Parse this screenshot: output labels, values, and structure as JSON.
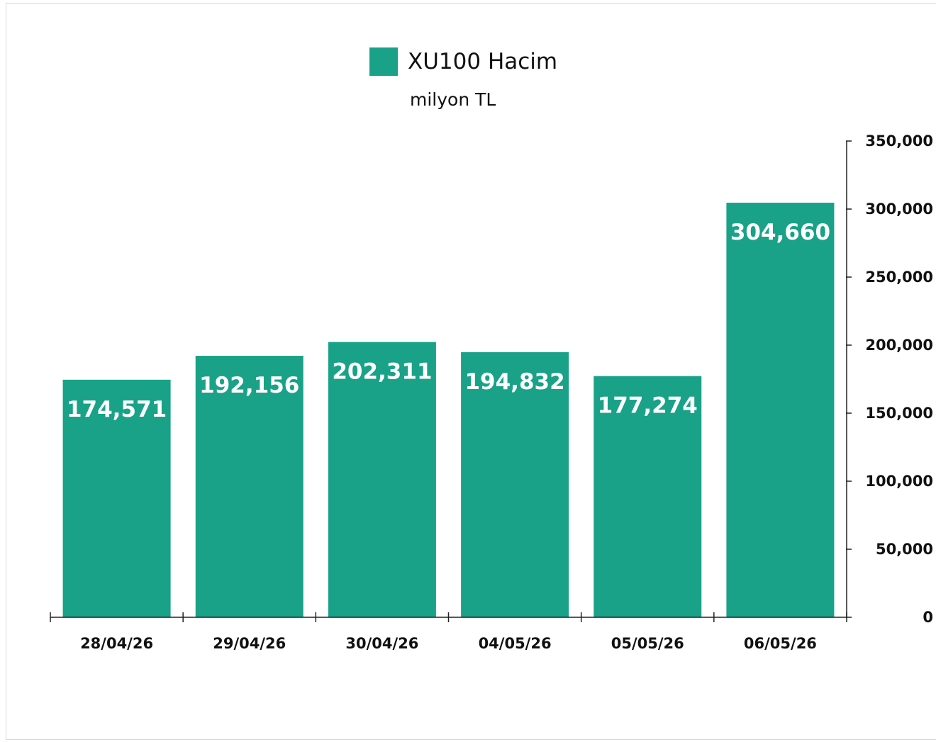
{
  "chart_data": {
    "type": "bar",
    "categories": [
      "28/04/26",
      "29/04/26",
      "30/04/26",
      "04/05/26",
      "05/05/26",
      "06/05/26"
    ],
    "series": [
      {
        "name": "XU100 Hacim",
        "values": [
          174571,
          192156,
          202311,
          194832,
          177274,
          304660
        ],
        "value_labels": [
          "174,571",
          "192,156",
          "202,311",
          "194,832",
          "177,274",
          "304,660"
        ]
      }
    ],
    "title": "",
    "subtitle": "milyon TL",
    "xlabel": "",
    "ylabel": "",
    "ylim": [
      0,
      350000
    ],
    "y_ticks": [
      0,
      50000,
      100000,
      150000,
      200000,
      250000,
      300000,
      350000
    ],
    "y_tick_labels": [
      "0",
      "50,000",
      "100,000",
      "150,000",
      "200,000",
      "250,000",
      "300,000",
      "350,000"
    ],
    "y_axis_side": "right",
    "grid": false,
    "legend_position": "top-center",
    "bar_color": "#19a288"
  }
}
